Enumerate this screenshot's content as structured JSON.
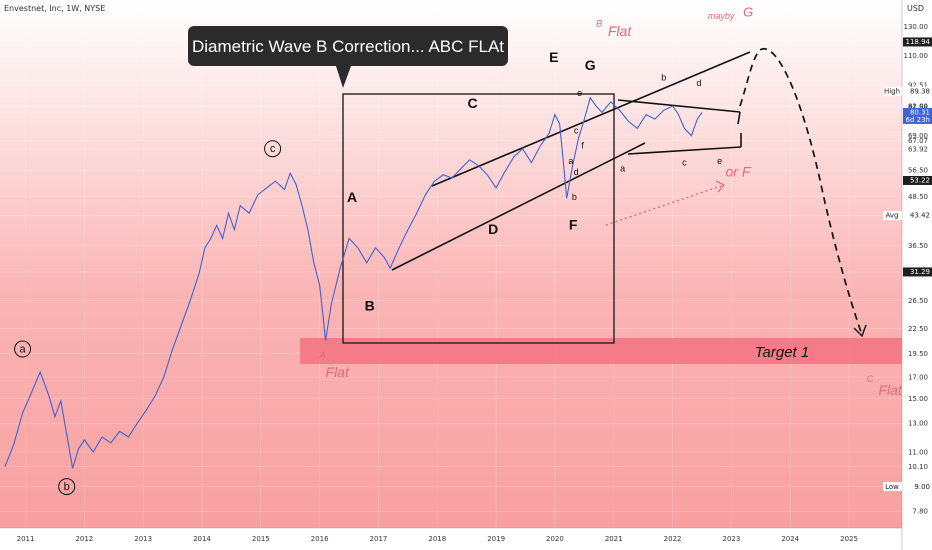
{
  "header": {
    "symbol_line": "Envestnet, Inc, 1W, NYSE",
    "currency": "USD"
  },
  "callout": {
    "text": "Diametric Wave B Correction... ABC FLAt"
  },
  "target": {
    "label": "Target 1"
  },
  "chart_data": {
    "type": "line",
    "title": "",
    "y_scale": "log",
    "ylim": [
      7.2,
      150
    ],
    "xlim": [
      2010.6,
      2025.9
    ],
    "y_ticks": [
      "130.00",
      "110.00",
      "92.51",
      "82.00",
      "81.58",
      "69.00",
      "67.07",
      "63.92",
      "56.50",
      "48.50",
      "43.42",
      "36.50",
      "31.29",
      "26.50",
      "22.50",
      "19.50",
      "17.00",
      "15.00",
      "13.00",
      "11.00",
      "10.10",
      "9.00",
      "7.80"
    ],
    "x_ticks": [
      "2011",
      "2012",
      "2013",
      "2014",
      "2015",
      "2016",
      "2017",
      "2018",
      "2019",
      "2020",
      "2021",
      "2022",
      "2023",
      "2024",
      "2025"
    ],
    "tags": [
      {
        "label": "",
        "value": "118.94",
        "y": 118.94,
        "style": "dark"
      },
      {
        "label": "High",
        "value": "89.38",
        "y": 89.38,
        "style": "light"
      },
      {
        "label": "",
        "value": "80.31",
        "sub": "6d 23h",
        "y": 79.0,
        "style": "blue"
      },
      {
        "label": "",
        "value": "53.22",
        "y": 53.22,
        "style": "dark"
      },
      {
        "label": "Avg",
        "value": "43.42",
        "y": 43.42,
        "style": "light"
      },
      {
        "label": "",
        "value": "31.29",
        "y": 31.29,
        "style": "dark"
      },
      {
        "label": "Low",
        "value": "9.00",
        "y": 9.0,
        "style": "light"
      }
    ],
    "series": [
      {
        "color": "#3f62d4",
        "points": [
          [
            2010.65,
            10.1
          ],
          [
            2010.8,
            11.5
          ],
          [
            2010.95,
            13.8
          ],
          [
            2011.1,
            15.5
          ],
          [
            2011.25,
            17.5
          ],
          [
            2011.4,
            15.2
          ],
          [
            2011.5,
            13.5
          ],
          [
            2011.6,
            14.8
          ],
          [
            2011.7,
            12.2
          ],
          [
            2011.8,
            10.0
          ],
          [
            2011.9,
            11.2
          ],
          [
            2012.0,
            11.8
          ],
          [
            2012.15,
            11.0
          ],
          [
            2012.3,
            12.0
          ],
          [
            2012.45,
            11.6
          ],
          [
            2012.6,
            12.4
          ],
          [
            2012.75,
            12.0
          ],
          [
            2012.9,
            13.0
          ],
          [
            2013.05,
            14.0
          ],
          [
            2013.2,
            15.2
          ],
          [
            2013.35,
            17.0
          ],
          [
            2013.5,
            20.0
          ],
          [
            2013.65,
            23.0
          ],
          [
            2013.8,
            26.5
          ],
          [
            2013.95,
            31.0
          ],
          [
            2014.05,
            36.0
          ],
          [
            2014.15,
            38.0
          ],
          [
            2014.25,
            41.0
          ],
          [
            2014.35,
            38.0
          ],
          [
            2014.45,
            44.0
          ],
          [
            2014.55,
            40.0
          ],
          [
            2014.65,
            46.0
          ],
          [
            2014.8,
            44.0
          ],
          [
            2014.95,
            49.0
          ],
          [
            2015.1,
            51.0
          ],
          [
            2015.25,
            53.0
          ],
          [
            2015.4,
            50.5
          ],
          [
            2015.5,
            55.5
          ],
          [
            2015.6,
            52.0
          ],
          [
            2015.7,
            46.0
          ],
          [
            2015.8,
            40.0
          ],
          [
            2015.9,
            33.0
          ],
          [
            2016.0,
            29.0
          ],
          [
            2016.06,
            24.0
          ],
          [
            2016.1,
            21.0
          ],
          [
            2016.2,
            26.0
          ],
          [
            2016.35,
            32.0
          ],
          [
            2016.5,
            38.0
          ],
          [
            2016.65,
            36.0
          ],
          [
            2016.8,
            33.0
          ],
          [
            2016.95,
            36.0
          ],
          [
            2017.1,
            34.0
          ],
          [
            2017.2,
            32.0
          ],
          [
            2017.35,
            36.0
          ],
          [
            2017.5,
            40.0
          ],
          [
            2017.65,
            44.0
          ],
          [
            2017.8,
            49.0
          ],
          [
            2017.95,
            53.0
          ],
          [
            2018.1,
            55.0
          ],
          [
            2018.25,
            54.0
          ],
          [
            2018.4,
            57.0
          ],
          [
            2018.55,
            60.0
          ],
          [
            2018.7,
            58.0
          ],
          [
            2018.85,
            55.0
          ],
          [
            2019.0,
            51.0
          ],
          [
            2019.15,
            56.0
          ],
          [
            2019.3,
            61.0
          ],
          [
            2019.45,
            64.0
          ],
          [
            2019.6,
            59.0
          ],
          [
            2019.75,
            65.0
          ],
          [
            2019.9,
            70.0
          ],
          [
            2020.0,
            78.0
          ],
          [
            2020.08,
            74.0
          ],
          [
            2020.13,
            62.0
          ],
          [
            2020.2,
            48.0
          ],
          [
            2020.3,
            58.0
          ],
          [
            2020.4,
            68.0
          ],
          [
            2020.5,
            76.0
          ],
          [
            2020.6,
            86.0
          ],
          [
            2020.7,
            82.0
          ],
          [
            2020.8,
            79.0
          ],
          [
            2020.95,
            84.0
          ],
          [
            2021.1,
            80.0
          ],
          [
            2021.25,
            75.0
          ],
          [
            2021.4,
            72.0
          ],
          [
            2021.55,
            78.0
          ],
          [
            2021.7,
            76.0
          ],
          [
            2021.85,
            80.0
          ],
          [
            2022.0,
            82.0
          ],
          [
            2022.1,
            78.0
          ],
          [
            2022.2,
            72.0
          ],
          [
            2022.32,
            69.0
          ],
          [
            2022.42,
            76.0
          ],
          [
            2022.5,
            79.0
          ]
        ]
      }
    ],
    "annotations": {
      "big": [
        {
          "text": "A",
          "x": 2016.55,
          "y": 47.0
        },
        {
          "text": "B",
          "x": 2016.85,
          "y": 25.0
        },
        {
          "text": "C",
          "x": 2018.6,
          "y": 81.0
        },
        {
          "text": "D",
          "x": 2018.95,
          "y": 39.0
        },
        {
          "text": "E",
          "x": 2019.98,
          "y": 106.0
        },
        {
          "text": "G",
          "x": 2020.6,
          "y": 101.0
        },
        {
          "text": "F",
          "x": 2020.31,
          "y": 40.0
        }
      ],
      "small": [
        {
          "text": "e",
          "x": 2020.42,
          "y": 87.0
        },
        {
          "text": "c",
          "x": 2020.36,
          "y": 70.0
        },
        {
          "text": "f",
          "x": 2020.47,
          "y": 64.0
        },
        {
          "text": "a",
          "x": 2020.27,
          "y": 58.5
        },
        {
          "text": "d",
          "x": 2020.36,
          "y": 55.0
        },
        {
          "text": "b",
          "x": 2020.33,
          "y": 47.5
        },
        {
          "text": "b",
          "x": 2021.85,
          "y": 95.0
        },
        {
          "text": "d",
          "x": 2022.45,
          "y": 92.0
        },
        {
          "text": "a",
          "x": 2021.15,
          "y": 56.0
        },
        {
          "text": "c",
          "x": 2022.2,
          "y": 58.0
        },
        {
          "text": "e",
          "x": 2022.8,
          "y": 58.5
        }
      ],
      "red": [
        {
          "text": "B",
          "x": 2020.7,
          "y": 130.0,
          "size": 9
        },
        {
          "text": "Flat",
          "x": 2020.9,
          "y": 123.0,
          "size": 14
        },
        {
          "text": "A",
          "x": 2016.0,
          "y": 19.0,
          "size": 9
        },
        {
          "text": "Flat",
          "x": 2016.1,
          "y": 17.0,
          "size": 14
        },
        {
          "text": "or F",
          "x": 2022.9,
          "y": 54.5,
          "size": 14
        },
        {
          "text": "mayby",
          "x": 2022.6,
          "y": 136.0,
          "size": 9
        },
        {
          "text": "G",
          "x": 2023.2,
          "y": 138.0,
          "size": 13
        },
        {
          "text": "C",
          "x": 2025.3,
          "y": 16.5,
          "size": 9
        },
        {
          "text": "Flat",
          "x": 2025.5,
          "y": 15.3,
          "size": 14
        }
      ],
      "circled": [
        {
          "text": "a",
          "x": 2010.95,
          "y": 20.0
        },
        {
          "text": "b",
          "x": 2011.7,
          "y": 9.0
        },
        {
          "text": "c",
          "x": 2015.2,
          "y": 64.0
        }
      ]
    }
  }
}
